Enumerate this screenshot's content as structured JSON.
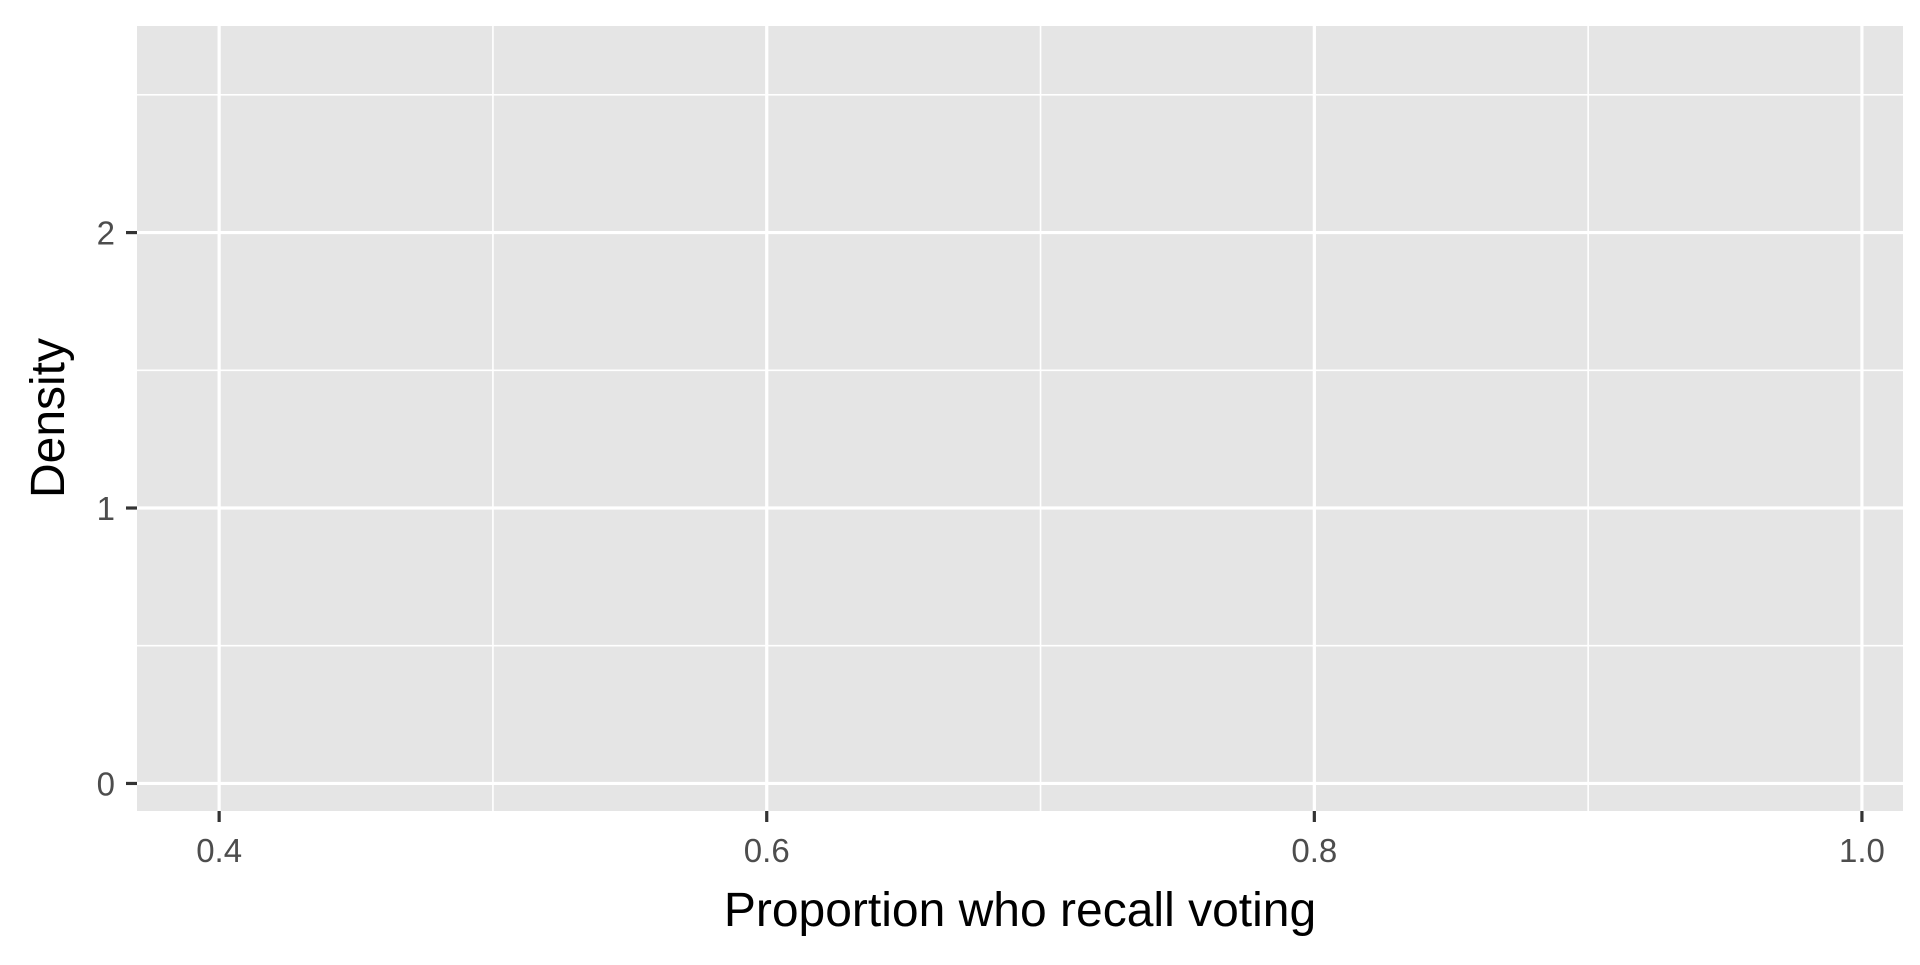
{
  "chart_data": {
    "type": "area",
    "title": "",
    "xlabel": "Proportion who recall voting",
    "ylabel": "Density",
    "xlim": [
      0.37,
      1.015
    ],
    "ylim": [
      -0.1,
      2.75
    ],
    "x_major_ticks": [
      0.4,
      0.6,
      0.8,
      1.0
    ],
    "x_tick_labels": [
      "0.4",
      "0.6",
      "0.8",
      "1.0"
    ],
    "x_minor_ticks": [
      0.5,
      0.7,
      0.9
    ],
    "y_major_ticks": [
      0,
      1,
      2
    ],
    "y_tick_labels": [
      "0",
      "1",
      "2"
    ],
    "y_minor_ticks": [
      0.5,
      1.5,
      2.5
    ],
    "series": [],
    "grid": true,
    "legend": "none",
    "colors": {
      "panel_background": "#e5e5e5",
      "grid_lines": "#ffffff",
      "tick_marks": "#333333",
      "tick_labels": "#4d4d4d",
      "axis_titles": "#000000"
    }
  }
}
